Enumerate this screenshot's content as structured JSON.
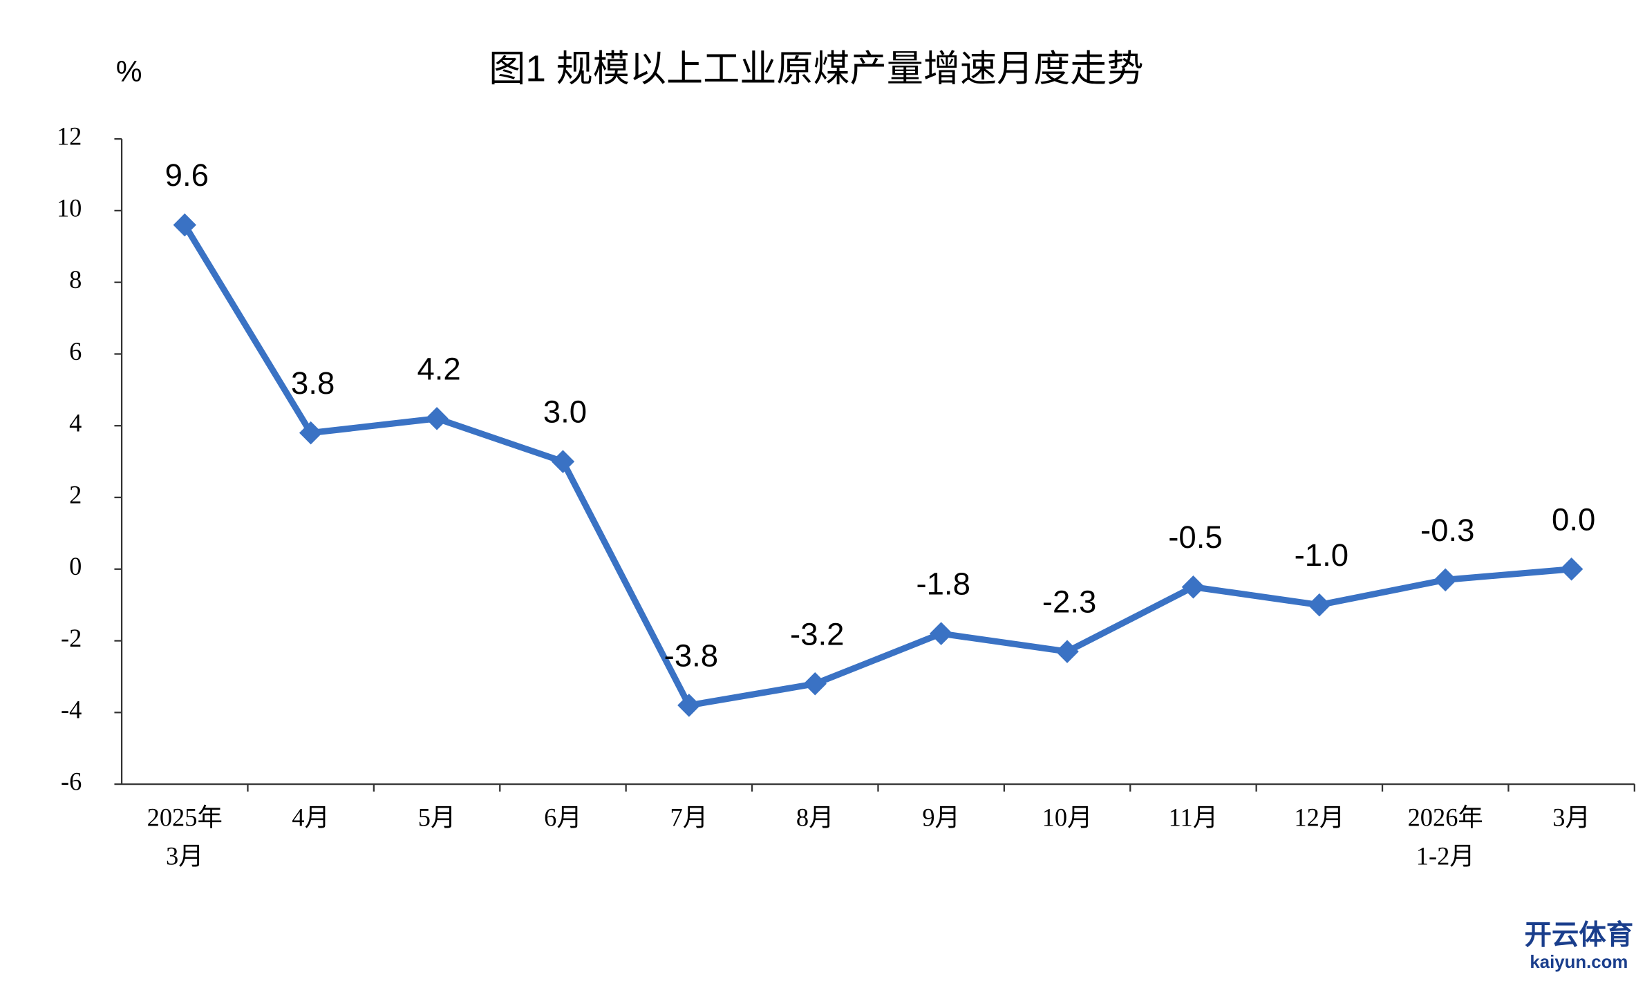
{
  "chart_data": {
    "type": "line",
    "title": "图1  规模以上工业原煤产量增速月度走势",
    "y_unit": "%",
    "categories": [
      [
        "2025年",
        "3月"
      ],
      [
        "4月"
      ],
      [
        "5月"
      ],
      [
        "6月"
      ],
      [
        "7月"
      ],
      [
        "8月"
      ],
      [
        "9月"
      ],
      [
        "10月"
      ],
      [
        "11月"
      ],
      [
        "12月"
      ],
      [
        "2026年",
        "1-2月"
      ],
      [
        "3月"
      ]
    ],
    "series": [
      {
        "name": "原煤产量增速",
        "color": "#3a72c4",
        "values": [
          9.6,
          3.8,
          4.2,
          3.0,
          -3.8,
          -3.2,
          -1.8,
          -2.3,
          -0.5,
          -1.0,
          -0.3,
          0.0
        ],
        "value_labels": [
          "9.6",
          "3.8",
          "4.2",
          "3.0",
          "-3.8",
          "-3.2",
          "-1.8",
          "-2.3",
          "-0.5",
          "-1.0",
          "-0.3",
          "0.0"
        ]
      }
    ],
    "ylim": [
      -6,
      12
    ],
    "yticks": [
      -6,
      -4,
      -2,
      0,
      2,
      4,
      6,
      8,
      10,
      12
    ],
    "grid": false
  },
  "watermark": {
    "brand": "开云体育",
    "site": "kaiyun.com"
  }
}
